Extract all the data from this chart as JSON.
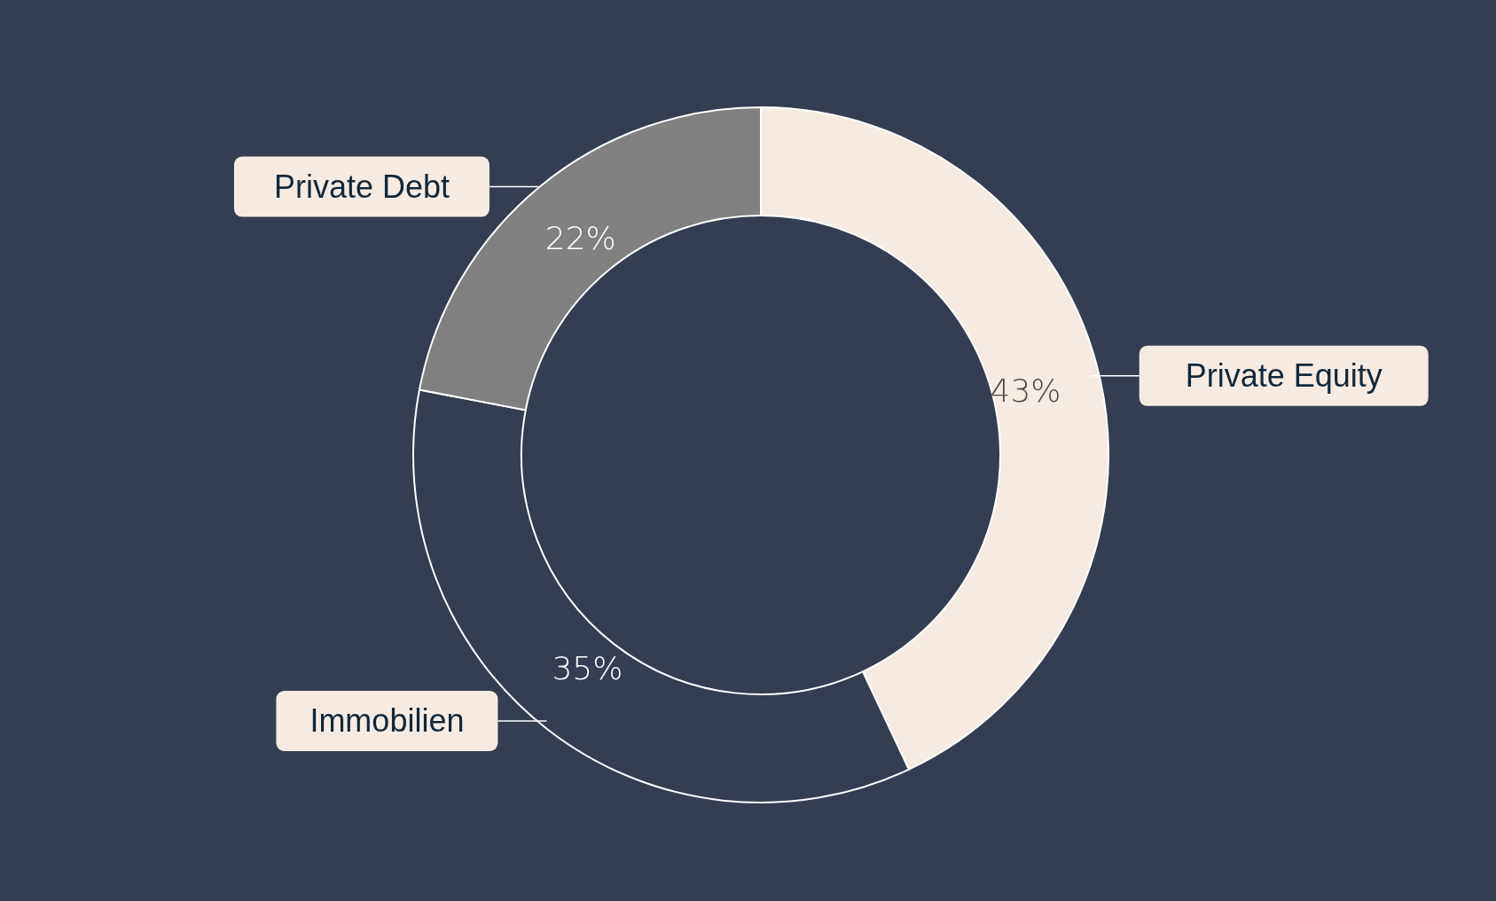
{
  "chart_data": {
    "type": "donut",
    "categories": [
      "Private Equity",
      "Immobilien",
      "Private Debt"
    ],
    "values": [
      43,
      35,
      22
    ],
    "colors": [
      "#f5ebe2",
      "#343e50",
      "#808080"
    ],
    "value_labels": [
      "43%",
      "35%",
      "22%"
    ]
  }
}
